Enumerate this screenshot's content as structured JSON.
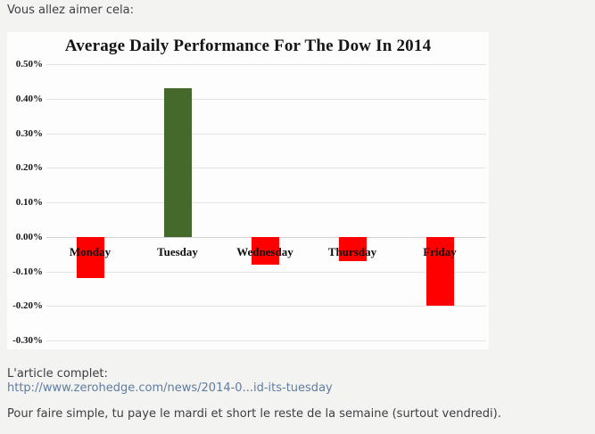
{
  "page": {
    "intro": "Vous allez aimer cela:",
    "article_label": "L'article complet:",
    "article_link": "http://www.zerohedge.com/news/2014-0...id-its-tuesday",
    "comment": "Pour faire simple, tu paye le mardi et short le reste de la semaine (surtout vendredi)."
  },
  "colors": {
    "page_background": "#f3f3f1",
    "chart_background": "#fdfdfd",
    "gridline": "#e3e3e3",
    "text": "#3e3d43",
    "link": "#5f7d9f"
  },
  "chart_data": {
    "type": "bar",
    "title": "Average Daily Performance For The Dow In 2014",
    "categories": [
      "Monday",
      "Tuesday",
      "Wednesday",
      "Thursday",
      "Friday"
    ],
    "values": [
      -0.12,
      0.43,
      -0.08,
      -0.07,
      -0.2
    ],
    "unit": "%",
    "xlabel": "",
    "ylabel": "",
    "ylim": [
      -0.3,
      0.5
    ],
    "ytick_step": 0.1,
    "ytick_labels": [
      "0.50%",
      "0.40%",
      "0.30%",
      "0.20%",
      "0.10%",
      "0.00%",
      "-0.10%",
      "-0.20%",
      "-0.30%"
    ],
    "grid": true,
    "legend": "none",
    "bar_colors": {
      "positive": "#45682b",
      "negative": "#ff0000"
    }
  }
}
